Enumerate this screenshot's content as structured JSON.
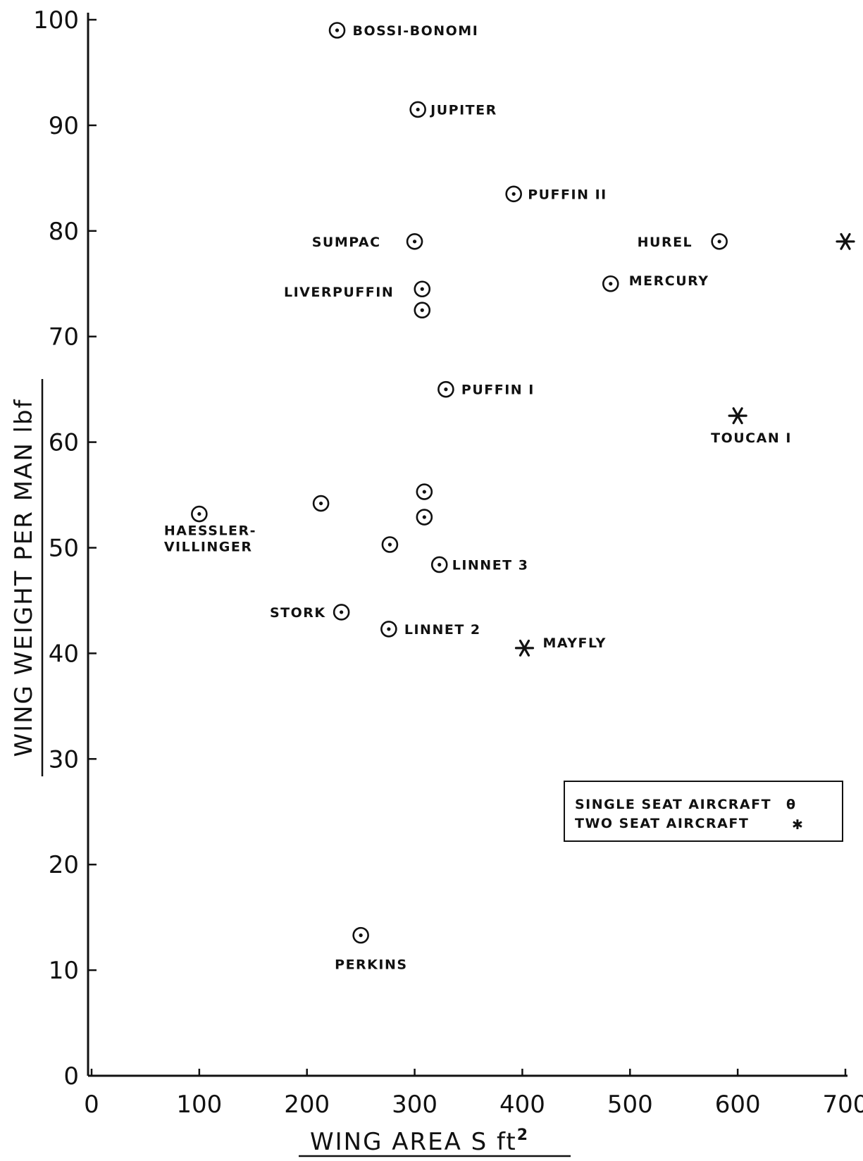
{
  "chart_data": {
    "type": "scatter",
    "title": "",
    "xlabel": "WING  AREA S  ft",
    "xlabel_superscript": "2",
    "ylabel": "WING WEIGHT PER MAN lbf",
    "xlim": [
      0,
      700
    ],
    "ylim": [
      0,
      100
    ],
    "x_ticks": [
      "0",
      "100",
      "200",
      "300",
      "400",
      "500",
      "600",
      "700"
    ],
    "y_ticks": [
      "0",
      "10",
      "20",
      "30",
      "40",
      "50",
      "60",
      "70",
      "80",
      "90",
      "100"
    ],
    "grid": false,
    "legend_placement": "center-right",
    "series": [
      {
        "name": "SINGLE SEAT AIRCRAFT",
        "legend_symbol": "θ",
        "marker": "dotted-circle",
        "points": [
          {
            "x": 228,
            "y": 99,
            "label": "BOSSI-BONOMI"
          },
          {
            "x": 303,
            "y": 91.5,
            "label": "JUPITER"
          },
          {
            "x": 392,
            "y": 83.5,
            "label": "PUFFIN II"
          },
          {
            "x": 300,
            "y": 79,
            "label": "SUMPAC"
          },
          {
            "x": 583,
            "y": 79,
            "label": "HUREL"
          },
          {
            "x": 307,
            "y": 74.5,
            "label": "LIVERPUFFIN"
          },
          {
            "x": 307,
            "y": 72.5,
            "label": ""
          },
          {
            "x": 482,
            "y": 75,
            "label": "MERCURY"
          },
          {
            "x": 329,
            "y": 65,
            "label": "PUFFIN I"
          },
          {
            "x": 309,
            "y": 55.3,
            "label": ""
          },
          {
            "x": 213,
            "y": 54.2,
            "label": ""
          },
          {
            "x": 100,
            "y": 53.2,
            "label": "HAESSLER-\nVILLINGER"
          },
          {
            "x": 309,
            "y": 52.9,
            "label": ""
          },
          {
            "x": 277,
            "y": 50.3,
            "label": ""
          },
          {
            "x": 323,
            "y": 48.4,
            "label": "LINNET 3"
          },
          {
            "x": 232,
            "y": 43.9,
            "label": "STORK"
          },
          {
            "x": 276,
            "y": 42.3,
            "label": "LINNET 2"
          },
          {
            "x": 250,
            "y": 13.3,
            "label": "PERKINS"
          }
        ]
      },
      {
        "name": "TWO SEAT AIRCRAFT",
        "legend_symbol": "✱",
        "marker": "asterisk",
        "points": [
          {
            "x": 700,
            "y": 79,
            "label": ""
          },
          {
            "x": 600,
            "y": 62.5,
            "label": "TOUCAN I"
          },
          {
            "x": 402,
            "y": 40.5,
            "label": "MAYFLY"
          }
        ]
      }
    ]
  }
}
